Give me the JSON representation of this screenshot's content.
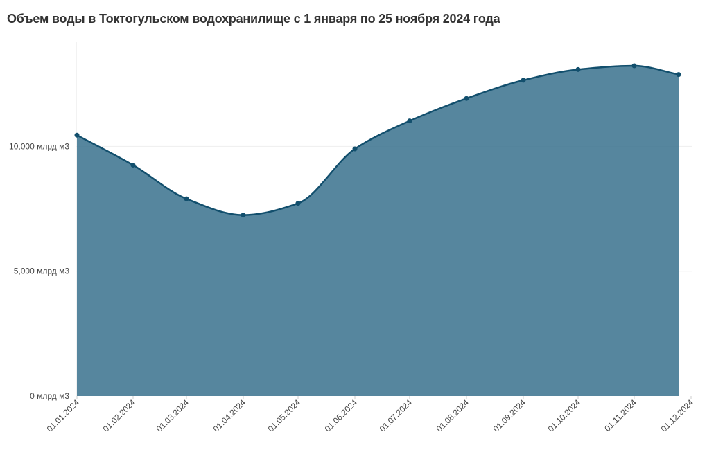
{
  "title": "Объем воды в Токтогульском водохранилище с 1 января по 25 ноября 2024 года",
  "chart_data": {
    "type": "area",
    "title": "Объем воды в Токтогульском водохранилище с 1 января по 25 ноября 2024 года",
    "xlabel": "",
    "ylabel": "",
    "x": [
      "01.01.2024",
      "01.02.2024",
      "01.03.2024",
      "01.04.2024",
      "01.05.2024",
      "01.06.2024",
      "01.07.2024",
      "01.08.2024",
      "01.09.2024",
      "01.10.2024",
      "01.11.2024",
      "25.11.2024"
    ],
    "x_tick_labels": [
      "01.01.2024",
      "01.02.2024",
      "01.03.2024",
      "01.04.2024",
      "01.05.2024",
      "01.06.2024",
      "01.07.2024",
      "01.08.2024",
      "01.09.2024",
      "01.10.2024",
      "01.11.2024",
      "01.12.2024"
    ],
    "values": [
      10450,
      9250,
      7900,
      7250,
      7720,
      9900,
      11020,
      11920,
      12650,
      13080,
      13230,
      12880
    ],
    "y_ticks": [
      0,
      5000,
      10000
    ],
    "y_tick_labels": [
      "0 млрд м3",
      "5,000 млрд м3",
      "10,000 млрд м3"
    ],
    "ylim": [
      0,
      14200
    ],
    "grid": true,
    "colors": {
      "fill": "#3f7591",
      "line": "#124f6d",
      "marker": "#124f6d",
      "grid": "#eeeeee"
    }
  }
}
